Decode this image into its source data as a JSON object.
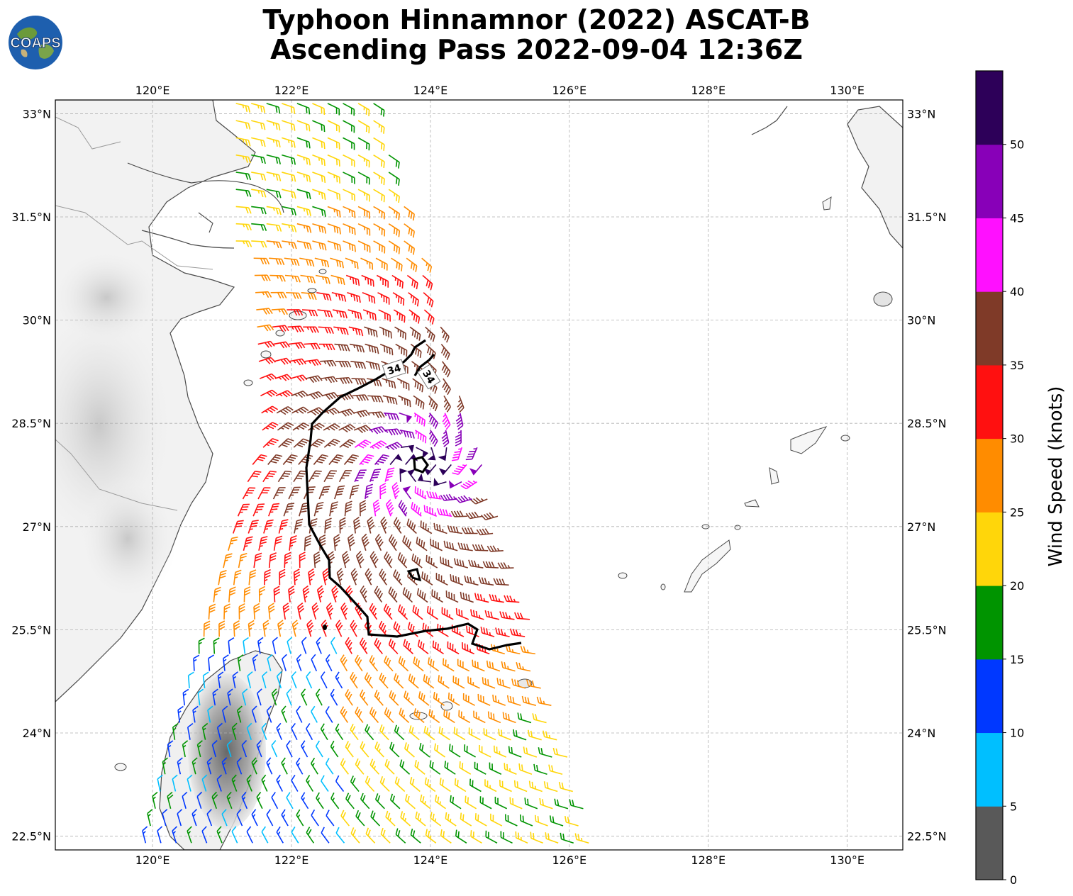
{
  "title": {
    "line1": "Typhoon Hinnamnor (2022) ASCAT-B",
    "line2": "Ascending Pass 2022-09-04 12:36Z"
  },
  "logo": {
    "text": "COAPS",
    "icon": "globe-icon"
  },
  "map": {
    "lon_range": [
      118.6,
      130.8
    ],
    "lat_range": [
      22.3,
      33.2
    ],
    "lon_ticks": [
      120,
      122,
      124,
      126,
      128,
      130
    ],
    "lat_ticks": [
      22.5,
      24,
      25.5,
      27,
      28.5,
      30,
      33
    ],
    "lon_tick_labels": [
      "120°E",
      "122°E",
      "124°E",
      "126°E",
      "128°E",
      "130°E"
    ],
    "lat_tick_labels": [
      "22.5°N",
      "24°N",
      "25.5°N",
      "27°N",
      "28.5°N",
      "30°N",
      "33°N"
    ],
    "extra_lat_tick": 31.5,
    "extra_lat_tick_label": "31.5°N",
    "gridlines": true,
    "contour_value": 34,
    "contour_label": "34",
    "storm_center": [
      123.85,
      27.9
    ]
  },
  "colorbar": {
    "label": "Wind Speed (knots)",
    "bounds": [
      0,
      5,
      10,
      15,
      20,
      25,
      30,
      35,
      40,
      45,
      50,
      55
    ],
    "tick_labels": [
      "0",
      "5",
      "10",
      "15",
      "20",
      "25",
      "30",
      "35",
      "40",
      "45",
      "50"
    ],
    "colors": [
      "#595959",
      "#00bfff",
      "#0038ff",
      "#009400",
      "#ffd60a",
      "#ff8c00",
      "#ff1010",
      "#7f3a28",
      "#ff10ff",
      "#8800b8",
      "#2d0059"
    ]
  }
}
